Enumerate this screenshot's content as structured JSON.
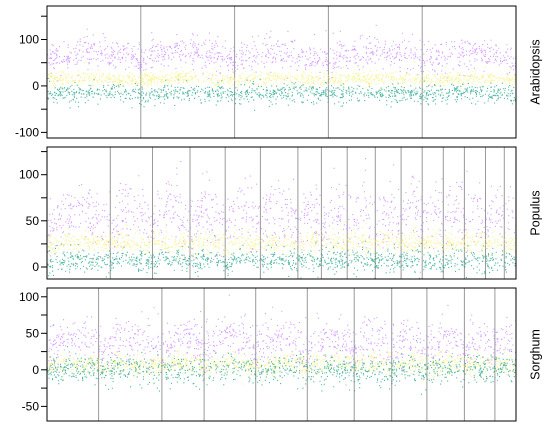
{
  "chart_data": [
    {
      "type": "scatter",
      "title": "",
      "xlabel": "",
      "ylabel": "",
      "panel_label": "Arabidopsis",
      "ylim": [
        -112,
        172
      ],
      "yticks": [
        -100,
        0,
        100
      ],
      "yticks_minor": [
        -50,
        50,
        150
      ],
      "chromosome_boundaries": [
        0.2,
        0.4,
        0.6,
        0.8
      ],
      "series": [
        {
          "color": "#c77dff",
          "mean": 68,
          "spread": 22
        },
        {
          "color": "#f5f06e",
          "mean": 16,
          "spread": 10
        },
        {
          "color": "#14a085",
          "mean": -15,
          "spread": 13
        }
      ]
    },
    {
      "type": "scatter",
      "title": "",
      "xlabel": "",
      "ylabel": "",
      "panel_label": "Populus",
      "ylim": [
        -13,
        130
      ],
      "yticks": [
        0,
        50,
        100
      ],
      "yticks_minor": [
        25,
        75,
        125
      ],
      "chromosome_boundaries": [
        0.135,
        0.225,
        0.305,
        0.38,
        0.455,
        0.535,
        0.585,
        0.64,
        0.7,
        0.755,
        0.8,
        0.845,
        0.89,
        0.935,
        0.975
      ],
      "series": [
        {
          "color": "#c77dff",
          "mean": 55,
          "spread": 22
        },
        {
          "color": "#f5f06e",
          "mean": 27,
          "spread": 8
        },
        {
          "color": "#14a085",
          "mean": 8,
          "spread": 8
        }
      ]
    },
    {
      "type": "scatter",
      "title": "",
      "xlabel": "",
      "ylabel": "",
      "panel_label": "Sorghum",
      "ylim": [
        -70,
        112
      ],
      "yticks": [
        -50,
        0,
        50,
        100
      ],
      "yticks_minor": [
        -25,
        25,
        75
      ],
      "chromosome_boundaries": [
        0.11,
        0.245,
        0.335,
        0.445,
        0.555,
        0.655,
        0.735,
        0.81,
        0.89,
        0.955
      ],
      "series": [
        {
          "color": "#c77dff",
          "mean": 38,
          "spread": 20
        },
        {
          "color": "#f5f06e",
          "mean": 8,
          "spread": 10
        },
        {
          "color": "#14a085",
          "mean": 0,
          "spread": 13
        }
      ]
    }
  ]
}
